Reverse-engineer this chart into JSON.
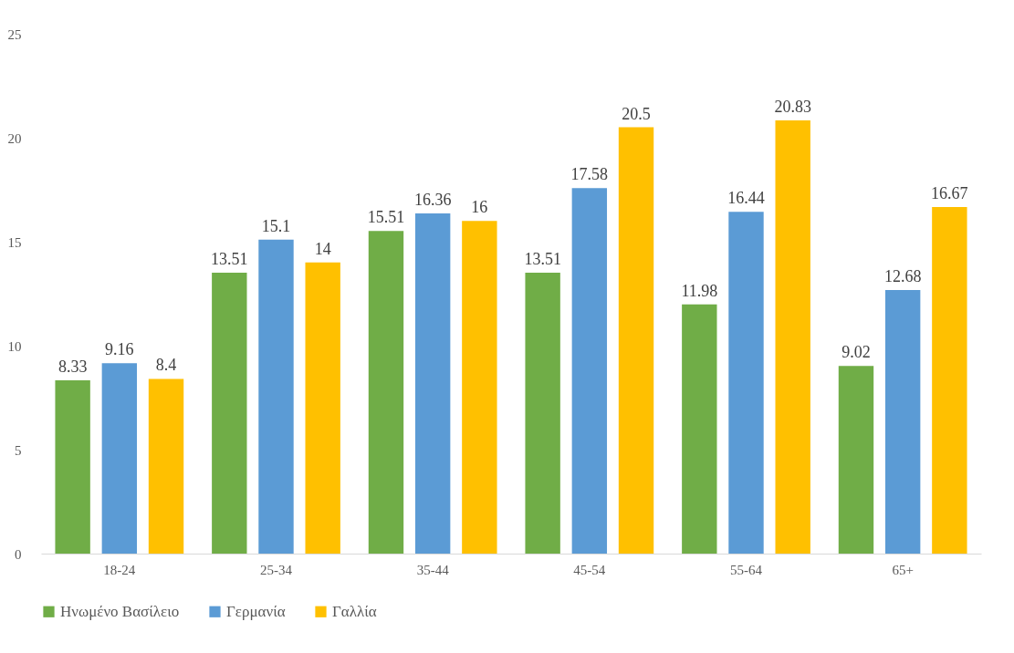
{
  "chart_data": {
    "type": "bar",
    "categories": [
      "18-24",
      "25-34",
      "35-44",
      "45-54",
      "55-64",
      "65+"
    ],
    "series": [
      {
        "name": "Ηνωμένο Βασίλειο",
        "color": "#70ad47",
        "values": [
          8.33,
          13.51,
          15.51,
          13.51,
          11.98,
          9.02
        ]
      },
      {
        "name": "Γερμανία",
        "color": "#5b9bd5",
        "values": [
          9.16,
          15.1,
          16.36,
          17.58,
          16.44,
          12.68
        ]
      },
      {
        "name": "Γαλλία",
        "color": "#ffc000",
        "values": [
          8.4,
          14,
          16,
          20.5,
          20.83,
          16.67
        ]
      }
    ],
    "ylim": [
      0,
      25
    ],
    "yticks": [
      0,
      5,
      10,
      15,
      20,
      25
    ],
    "grid": false,
    "legend": "bottom",
    "data_labels": true
  }
}
